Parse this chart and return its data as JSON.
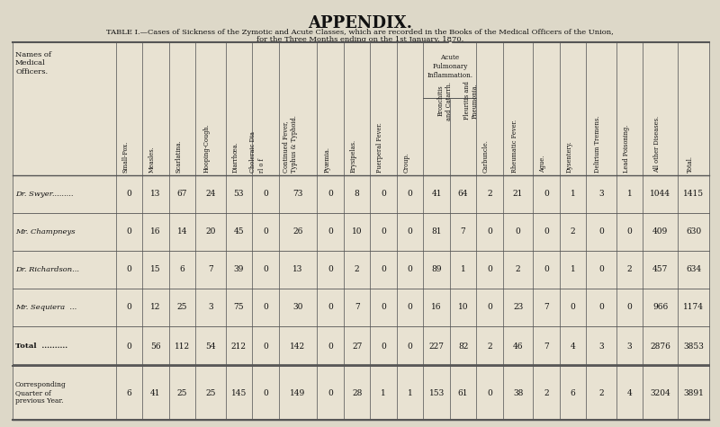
{
  "title": "APPENDIX.",
  "subtitle_line1": "TABLE I.—Cases of Sickness of the Zymotic and Acute Classes, which are recorded in the Books of the Medical Officers of the Union,",
  "subtitle_line2": "for the Three Months ending on the 1st January, 1870.",
  "bg_color": "#ddd8c8",
  "col_headers": [
    "Names of\nMedical\nOfficers.",
    "Small-Pox.",
    "Measles.",
    "Scarlatina.",
    "Hooping-Cough.",
    "Diarrhœa.",
    "Choleraic Dia\nrl o f",
    "Continued Fever,\nTyphus & Typhoid.",
    "Pyæmia.",
    "Erysipelas.",
    "Puerperal Fever.",
    "Croup.",
    "Bronchitis\nand Catarrh.",
    "Pleuritis and\nPneumonia.",
    "Carbuncle.",
    "Rheumatic Fever.",
    "Ague.",
    "Dysentery.",
    "Delirium Tremens.",
    "Lead Poisoning.",
    "All other Diseases.",
    "Total."
  ],
  "ap_span_cols": [
    12,
    13
  ],
  "ap_span_label": "Acute\nPulmonary\nInflammation.",
  "rows": [
    {
      "name": "Dr. Swyer.........",
      "values": [
        "0",
        "13",
        "67",
        "24",
        "53",
        "0",
        "73",
        "0",
        "8",
        "0",
        "0",
        "41",
        "64",
        "2",
        "21",
        "0",
        "1",
        "3",
        "1",
        "1044",
        "1415"
      ]
    },
    {
      "name": "Mr. Champneys",
      "values": [
        "0",
        "16",
        "14",
        "20",
        "45",
        "0",
        "26",
        "0",
        "10",
        "0",
        "0",
        "81",
        "7",
        "0",
        "0",
        "0",
        "2",
        "0",
        "0",
        "409",
        "630"
      ]
    },
    {
      "name": "Dr. Richardson...",
      "values": [
        "0",
        "15",
        "6",
        "7",
        "39",
        "0",
        "13",
        "0",
        "2",
        "0",
        "0",
        "89",
        "1",
        "0",
        "2",
        "0",
        "1",
        "0",
        "2",
        "457",
        "634"
      ]
    },
    {
      "name": "Mr. Sequiera  ...",
      "values": [
        "0",
        "12",
        "25",
        "3",
        "75",
        "0",
        "30",
        "0",
        "7",
        "0",
        "0",
        "16",
        "10",
        "0",
        "23",
        "7",
        "0",
        "0",
        "0",
        "966",
        "1174"
      ]
    }
  ],
  "total_row": {
    "name": "Total  ..........",
    "values": [
      "0",
      "56",
      "112",
      "54",
      "212",
      "0",
      "142",
      "0",
      "27",
      "0",
      "0",
      "227",
      "82",
      "2",
      "46",
      "7",
      "4",
      "3",
      "3",
      "2876",
      "3853"
    ]
  },
  "corr_row": {
    "name": "Corresponding\nQuarter of\nprevious Year.",
    "values": [
      "6",
      "41",
      "25",
      "25",
      "145",
      "0",
      "149",
      "0",
      "28",
      "1",
      "1",
      "153",
      "61",
      "0",
      "38",
      "2",
      "6",
      "2",
      "4",
      "3204",
      "3891"
    ]
  },
  "col_widths_rel": [
    2.8,
    0.72,
    0.72,
    0.72,
    0.82,
    0.72,
    0.72,
    1.05,
    0.72,
    0.72,
    0.72,
    0.72,
    0.72,
    0.72,
    0.72,
    0.82,
    0.72,
    0.72,
    0.82,
    0.72,
    0.95,
    0.85
  ]
}
